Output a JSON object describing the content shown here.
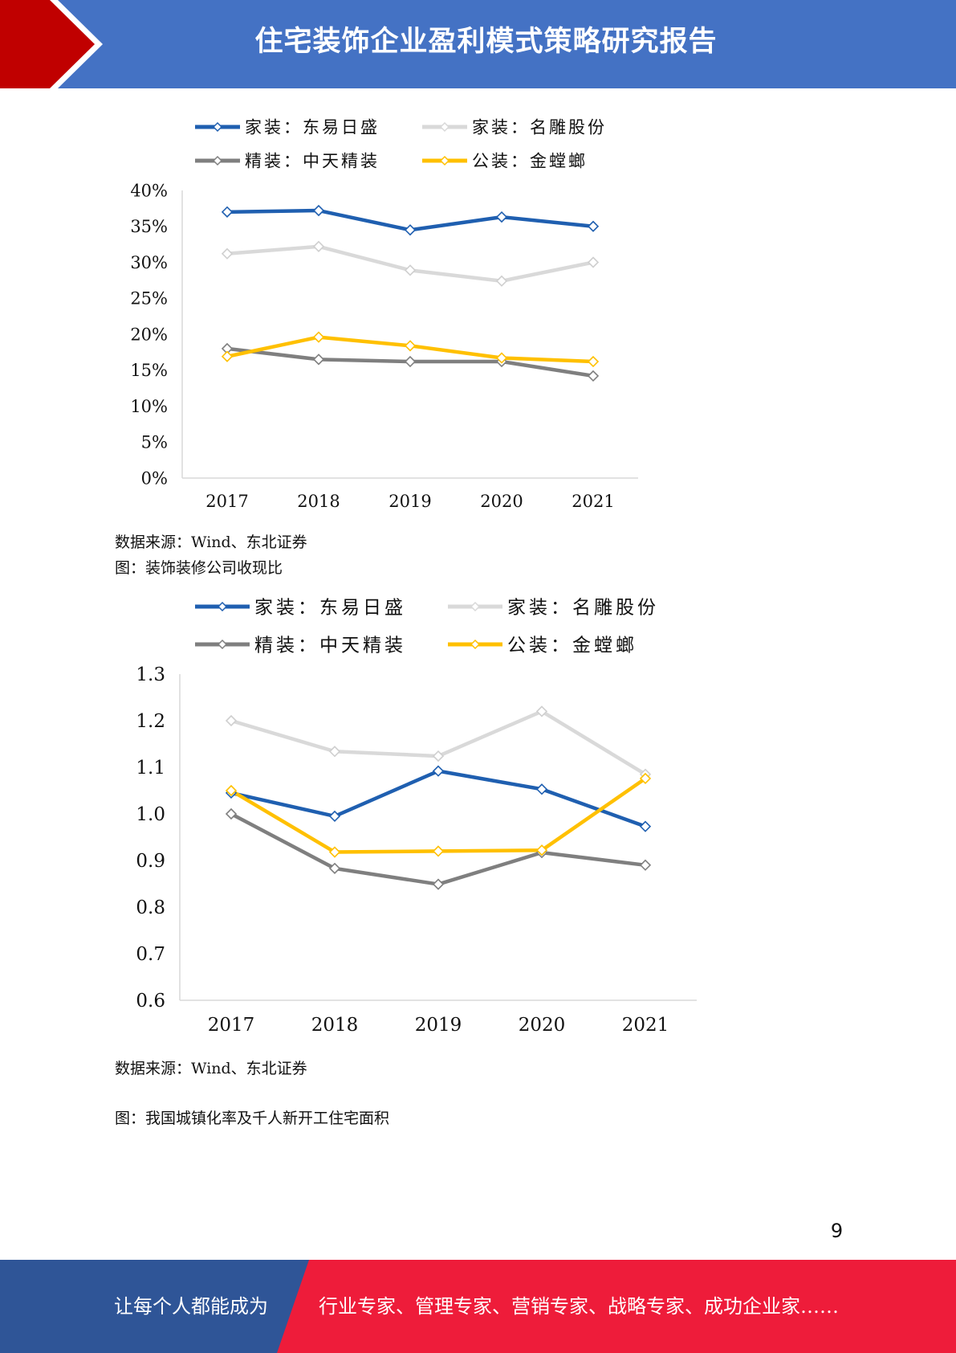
{
  "header": {
    "title": "住宅装饰企业盈利模式策略研究报告"
  },
  "colors": {
    "header_blue": "#4472c4",
    "accent_red": "#c00000",
    "footer_blue": "#2f5597",
    "footer_red": "#ee1c3a"
  },
  "charts": {
    "margin": {
      "caption_source": "数据来源：Wind、东北证券"
    },
    "cash": {
      "caption_title": "图：装饰装修公司收现比",
      "caption_source": "数据来源：Wind、东北证券"
    }
  },
  "next_figure": {
    "caption_title": "图：我国城镇化率及千人新开工住宅面积"
  },
  "chart_data": [
    {
      "type": "line",
      "categories": [
        "2017",
        "2018",
        "2019",
        "2020",
        "2021"
      ],
      "yticks": [
        "0%",
        "5%",
        "10%",
        "15%",
        "20%",
        "25%",
        "30%",
        "35%",
        "40%"
      ],
      "ylim": [
        0,
        40
      ],
      "legend_position": "top",
      "series": [
        {
          "name": "家装：东易日盛",
          "color": "#1f5fb0",
          "values": [
            37.0,
            37.2,
            34.5,
            36.3,
            35.0
          ]
        },
        {
          "name": "家装：名雕股份",
          "color": "#d9d9d9",
          "values": [
            31.2,
            32.2,
            28.9,
            27.4,
            30.0
          ]
        },
        {
          "name": "精装：中天精装",
          "color": "#7f7f7f",
          "values": [
            18.0,
            16.5,
            16.2,
            16.2,
            14.2
          ]
        },
        {
          "name": "公装：金螳螂",
          "color": "#ffc000",
          "values": [
            16.9,
            19.6,
            18.4,
            16.7,
            16.2
          ]
        }
      ]
    },
    {
      "type": "line",
      "categories": [
        "2017",
        "2018",
        "2019",
        "2020",
        "2021"
      ],
      "yticks": [
        "0.6",
        "0.7",
        "0.8",
        "0.9",
        "1.0",
        "1.1",
        "1.2",
        "1.3"
      ],
      "ylim": [
        0.6,
        1.3
      ],
      "legend_position": "top",
      "series": [
        {
          "name": "家装：东易日盛",
          "color": "#1f5fb0",
          "values": [
            1.045,
            0.995,
            1.092,
            1.053,
            0.973
          ]
        },
        {
          "name": "家装：名雕股份",
          "color": "#d9d9d9",
          "values": [
            1.2,
            1.134,
            1.124,
            1.22,
            1.085
          ]
        },
        {
          "name": "精装：中天精装",
          "color": "#7f7f7f",
          "values": [
            1.0,
            0.883,
            0.849,
            0.917,
            0.89
          ]
        },
        {
          "name": "公装：金螳螂",
          "color": "#ffc000",
          "values": [
            1.05,
            0.918,
            0.92,
            0.922,
            1.076
          ]
        }
      ]
    }
  ],
  "page": {
    "number": "9"
  },
  "footer": {
    "left_text": "让每个人都能成为",
    "right_text": "行业专家、管理专家、营销专家、战略专家、成功企业家……"
  }
}
